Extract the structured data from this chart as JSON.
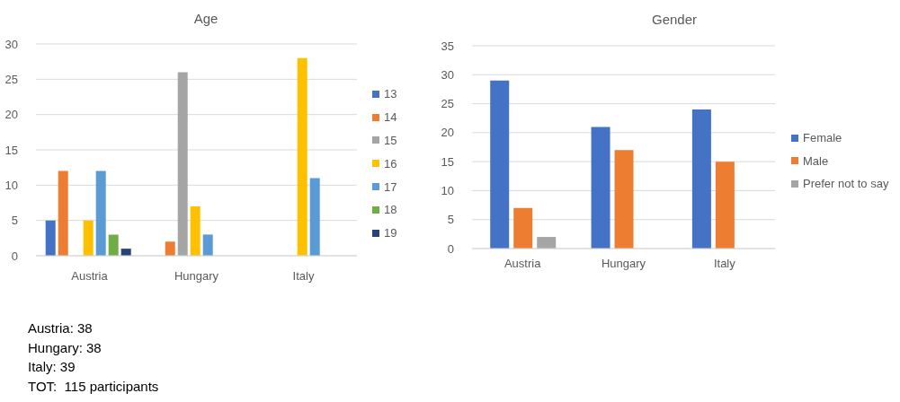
{
  "chart_data": [
    {
      "type": "bar",
      "title": "Age",
      "categories": [
        "Austria",
        "Hungary",
        "Italy"
      ],
      "series": [
        {
          "name": "13",
          "color": "#4472c4",
          "values": [
            5,
            null,
            null
          ]
        },
        {
          "name": "14",
          "color": "#ed7d31",
          "values": [
            12,
            2,
            null
          ]
        },
        {
          "name": "15",
          "color": "#a5a5a5",
          "values": [
            null,
            26,
            null
          ]
        },
        {
          "name": "16",
          "color": "#ffc000",
          "values": [
            5,
            7,
            28
          ]
        },
        {
          "name": "17",
          "color": "#5b9bd5",
          "values": [
            12,
            3,
            11
          ]
        },
        {
          "name": "18",
          "color": "#70ad47",
          "values": [
            3,
            null,
            null
          ]
        },
        {
          "name": "19",
          "color": "#264478",
          "values": [
            1,
            null,
            null
          ]
        }
      ],
      "ylim": [
        0,
        30
      ],
      "yticks": [
        0,
        5,
        10,
        15,
        20,
        25,
        30
      ],
      "grid": "y",
      "legend": "right",
      "annotations": [
        "Austria: 38",
        "Hungary: 38",
        "Italy: 39",
        "TOT:  115 participants"
      ]
    },
    {
      "type": "bar",
      "title": "Gender",
      "categories": [
        "Austria",
        "Hungary",
        "Italy"
      ],
      "series": [
        {
          "name": "Female",
          "color": "#4472c4",
          "values": [
            29,
            21,
            24
          ]
        },
        {
          "name": "Male",
          "color": "#ed7d31",
          "values": [
            7,
            17,
            15
          ]
        },
        {
          "name": "Prefer not to say",
          "color": "#a5a5a5",
          "values": [
            2,
            null,
            null
          ]
        }
      ],
      "ylim": [
        0,
        35
      ],
      "yticks": [
        0,
        5,
        10,
        15,
        20,
        25,
        30,
        35
      ],
      "grid": "y",
      "legend": "right"
    }
  ]
}
